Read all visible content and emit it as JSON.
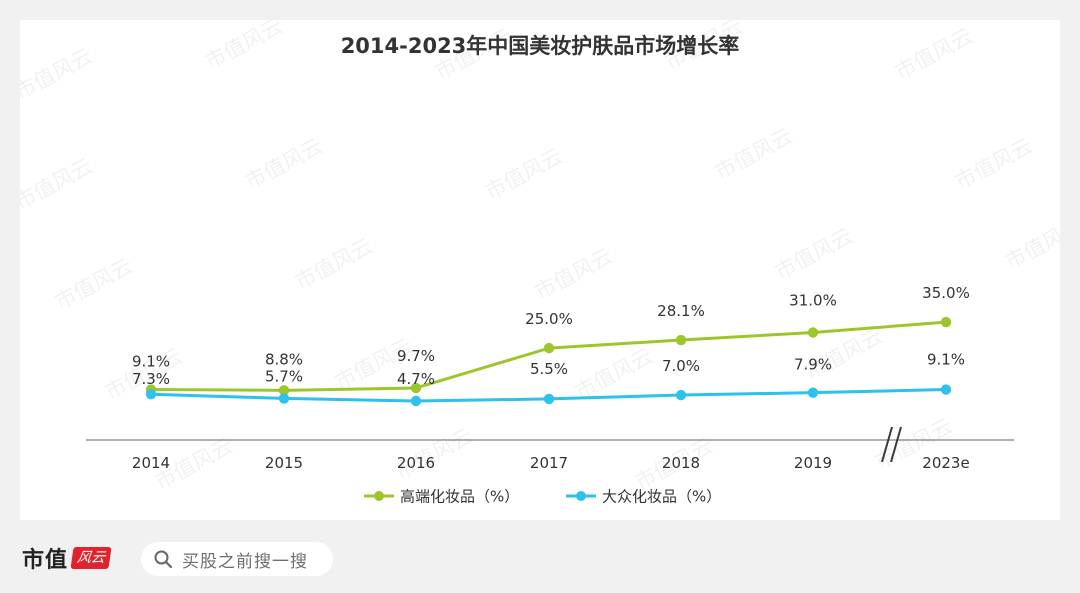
{
  "chart_data": {
    "type": "line",
    "title": "2014-2023年中国美妆护肤品市场增长率",
    "categories": [
      "2014",
      "2015",
      "2016",
      "2017",
      "2018",
      "2019",
      "2023e"
    ],
    "series": [
      {
        "name": "高端化妆品（%）",
        "color": "#9dc62a",
        "values": [
          9.1,
          8.8,
          9.7,
          25.0,
          28.1,
          31.0,
          35.0
        ],
        "labels": [
          "9.1%",
          "8.8%",
          "9.7%",
          "25.0%",
          "28.1%",
          "31.0%",
          "35.0%"
        ]
      },
      {
        "name": "大众化妆品（%）",
        "color": "#2ec1ec",
        "values": [
          7.3,
          5.7,
          4.7,
          5.5,
          7.0,
          7.9,
          9.1
        ],
        "labels": [
          "7.3%",
          "5.7%",
          "4.7%",
          "5.5%",
          "7.0%",
          "7.9%",
          "9.1%"
        ]
      }
    ],
    "ylim": [
      0,
      40
    ],
    "grid": false,
    "axis_break": "between 2019 and 2023e",
    "legend": "bottom-center"
  },
  "watermark": {
    "text": "市值风云"
  },
  "footer": {
    "brand_text": "市值",
    "brand_seal_text": "风云",
    "search_placeholder": "买股之前搜一搜",
    "search_icon": "search-icon"
  }
}
